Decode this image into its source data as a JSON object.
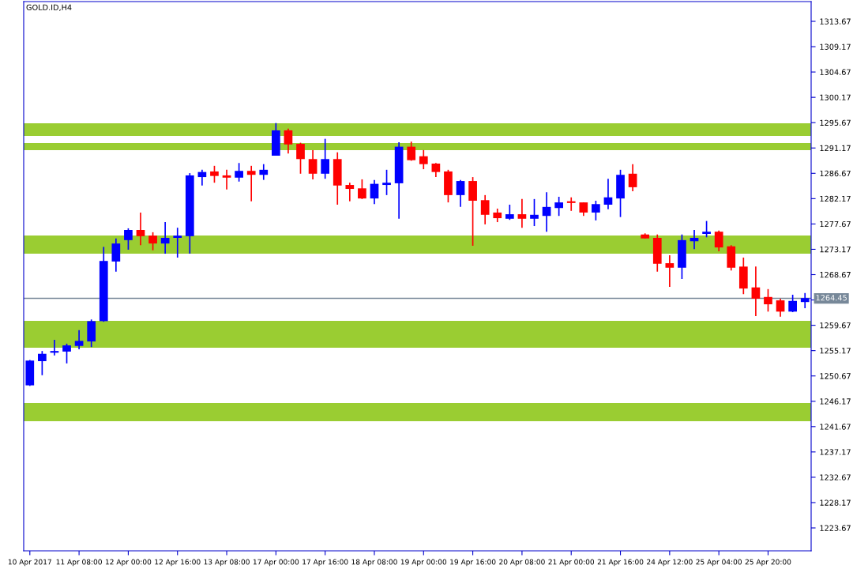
{
  "chart_data": {
    "type": "candlestick",
    "title": "GOLD.ID,H4",
    "categories": [
      "10 Apr 2017",
      null,
      null,
      null,
      "11 Apr 08:00",
      null,
      null,
      null,
      "12 Apr 00:00",
      null,
      null,
      null,
      "12 Apr 16:00",
      null,
      null,
      null,
      "13 Apr 08:00",
      null,
      null,
      null,
      "17 Apr 00:00",
      null,
      null,
      null,
      "17 Apr 16:00",
      null,
      null,
      null,
      "18 Apr 08:00",
      null,
      null,
      null,
      "19 Apr 00:00",
      null,
      null,
      null,
      "19 Apr 16:00",
      null,
      null,
      null,
      "20 Apr 08:00",
      null,
      null,
      null,
      "21 Apr 00:00",
      null,
      null,
      null,
      "21 Apr 16:00",
      null,
      null,
      null,
      "24 Apr 12:00",
      null,
      null,
      null,
      "25 Apr 04:00",
      null,
      null,
      null,
      "25 Apr 20:00",
      null,
      null,
      null
    ],
    "ohlc": [
      [
        1249.0,
        1253.5,
        1248.9,
        1253.4
      ],
      [
        1253.3,
        1255.1,
        1250.8,
        1254.6
      ],
      [
        1254.8,
        1257.1,
        1254.3,
        1255.1
      ],
      [
        1255.0,
        1256.4,
        1252.9,
        1256.1
      ],
      [
        1256.0,
        1258.8,
        1255.4,
        1256.9
      ],
      [
        1256.8,
        1260.7,
        1255.8,
        1260.4
      ],
      [
        1260.4,
        1273.6,
        1260.3,
        1271.1
      ],
      [
        1271.0,
        1275.1,
        1269.2,
        1274.2
      ],
      [
        1274.8,
        1276.9,
        1273.1,
        1276.6
      ],
      [
        1276.6,
        1279.7,
        1273.9,
        1275.5
      ],
      [
        1275.6,
        1276.2,
        1273.0,
        1274.2
      ],
      [
        1274.2,
        1278.0,
        1272.4,
        1275.2
      ],
      [
        1275.2,
        1277.0,
        1271.7,
        1275.6
      ],
      [
        1275.5,
        1286.7,
        1272.4,
        1286.3
      ],
      [
        1286.0,
        1287.3,
        1284.5,
        1286.9
      ],
      [
        1287.0,
        1288.0,
        1285.0,
        1286.2
      ],
      [
        1286.3,
        1287.3,
        1283.8,
        1285.9
      ],
      [
        1285.9,
        1288.5,
        1285.2,
        1287.1
      ],
      [
        1287.1,
        1288.0,
        1281.7,
        1286.4
      ],
      [
        1286.4,
        1288.3,
        1285.5,
        1287.3
      ],
      [
        1289.8,
        1295.6,
        1289.8,
        1294.3
      ],
      [
        1294.3,
        1294.6,
        1290.2,
        1291.8
      ],
      [
        1291.9,
        1292.1,
        1286.6,
        1289.2
      ],
      [
        1289.2,
        1290.8,
        1285.6,
        1286.6
      ],
      [
        1286.6,
        1292.8,
        1285.7,
        1289.2
      ],
      [
        1289.2,
        1290.4,
        1281.1,
        1284.5
      ],
      [
        1284.6,
        1285.0,
        1281.7,
        1283.9
      ],
      [
        1284.0,
        1285.6,
        1282.1,
        1282.2
      ],
      [
        1282.2,
        1285.5,
        1281.2,
        1284.8
      ],
      [
        1284.6,
        1287.3,
        1282.8,
        1285.0
      ],
      [
        1284.9,
        1292.2,
        1278.6,
        1291.4
      ],
      [
        1291.4,
        1292.3,
        1288.9,
        1289.0
      ],
      [
        1289.7,
        1290.8,
        1287.4,
        1288.3
      ],
      [
        1288.4,
        1288.5,
        1286.0,
        1286.9
      ],
      [
        1287.0,
        1287.3,
        1281.5,
        1282.8
      ],
      [
        1282.8,
        1285.5,
        1280.7,
        1285.3
      ],
      [
        1285.3,
        1286.0,
        1273.8,
        1281.8
      ],
      [
        1281.9,
        1282.8,
        1277.6,
        1279.3
      ],
      [
        1279.7,
        1280.4,
        1278.0,
        1278.7
      ],
      [
        1278.6,
        1281.1,
        1278.4,
        1279.4
      ],
      [
        1279.4,
        1282.1,
        1277.0,
        1278.6
      ],
      [
        1278.6,
        1282.1,
        1277.3,
        1279.3
      ],
      [
        1279.1,
        1283.3,
        1276.3,
        1280.7
      ],
      [
        1280.5,
        1282.5,
        1279.1,
        1281.5
      ],
      [
        1281.7,
        1282.4,
        1280.0,
        1281.4
      ],
      [
        1281.5,
        1281.5,
        1279.1,
        1279.7
      ],
      [
        1279.7,
        1281.8,
        1278.3,
        1281.2
      ],
      [
        1281.1,
        1285.7,
        1280.3,
        1282.4
      ],
      [
        1282.2,
        1287.3,
        1278.9,
        1286.4
      ],
      [
        1286.6,
        1288.3,
        1283.5,
        1284.2
      ],
      [
        1275.8,
        1276.0,
        1275.1,
        1275.1
      ],
      [
        1275.2,
        1275.8,
        1269.2,
        1270.6
      ],
      [
        1270.7,
        1272.1,
        1266.5,
        1269.9
      ],
      [
        1269.9,
        1275.8,
        1267.9,
        1274.8
      ],
      [
        1274.6,
        1276.6,
        1273.2,
        1275.2
      ],
      [
        1275.9,
        1278.2,
        1275.3,
        1276.3
      ],
      [
        1276.3,
        1276.5,
        1272.8,
        1273.5
      ],
      [
        1273.7,
        1273.9,
        1269.4,
        1269.9
      ],
      [
        1270.1,
        1271.7,
        1265.2,
        1266.2
      ],
      [
        1266.4,
        1270.1,
        1261.3,
        1264.4
      ],
      [
        1264.7,
        1266.1,
        1262.1,
        1263.4
      ],
      [
        1264.1,
        1264.4,
        1261.2,
        1262.1
      ],
      [
        1262.1,
        1265.1,
        1262.0,
        1264.0
      ],
      [
        1263.8,
        1265.4,
        1262.7,
        1264.5
      ]
    ],
    "colors": [
      "#0000ff",
      "#0000ff",
      "#0000ff",
      "#0000ff",
      "#0000ff",
      "#0000ff",
      "#0000ff",
      "#0000ff",
      "#0000ff",
      "#ff0000",
      "#ff0000",
      "#0000ff",
      "#0000ff",
      "#0000ff",
      "#0000ff",
      "#ff0000",
      "#ff0000",
      "#0000ff",
      "#ff0000",
      "#0000ff",
      "#0000ff",
      "#ff0000",
      "#ff0000",
      "#ff0000",
      "#0000ff",
      "#ff0000",
      "#ff0000",
      "#ff0000",
      "#0000ff",
      "#0000ff",
      "#0000ff",
      "#ff0000",
      "#ff0000",
      "#ff0000",
      "#ff0000",
      "#0000ff",
      "#ff0000",
      "#ff0000",
      "#ff0000",
      "#0000ff",
      "#ff0000",
      "#0000ff",
      "#0000ff",
      "#0000ff",
      "#ff0000",
      "#ff0000",
      "#0000ff",
      "#0000ff",
      "#0000ff",
      "#ff0000",
      "#ff0000",
      "#ff0000",
      "#ff0000",
      "#0000ff",
      "#0000ff",
      "#0000ff",
      "#ff0000",
      "#ff0000",
      "#ff0000",
      "#ff0000",
      "#ff0000",
      "#ff0000",
      "#0000ff",
      "#0000ff"
    ],
    "ylim": [
      1219.6,
      1317.18
    ],
    "yticks": [
      1223.67,
      1228.17,
      1232.67,
      1237.17,
      1241.67,
      1246.17,
      1250.67,
      1255.17,
      1259.67,
      {
        "value": 1264.17,
        "label": null
      },
      1268.67,
      1273.17,
      1277.67,
      1282.17,
      1286.67,
      1291.17,
      1295.67,
      1300.17,
      1304.67,
      1309.17,
      1313.67
    ],
    "bands": [
      {
        "axis": "y",
        "from": 1293.31,
        "to": 1295.56,
        "color": "#9acd32"
      },
      {
        "axis": "y",
        "from": 1290.78,
        "to": 1292.05,
        "color": "#9acd32"
      },
      {
        "axis": "y",
        "from": 1272.39,
        "to": 1275.62,
        "color": "#9acd32"
      },
      {
        "axis": "y",
        "from": 1255.68,
        "to": 1260.45,
        "color": "#9acd32"
      },
      {
        "axis": "y",
        "from": 1242.62,
        "to": 1245.85,
        "color": "#9acd32"
      }
    ],
    "ref_lines": [
      {
        "axis": "y",
        "value": 1264.45,
        "label": "1264.45",
        "color": "#778899"
      }
    ],
    "grid": false,
    "legend": false
  }
}
